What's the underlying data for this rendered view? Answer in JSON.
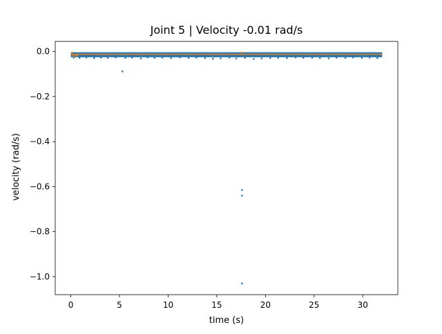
{
  "chart_data": {
    "type": "scatter",
    "title": "Joint 5 | Velocity -0.01 rad/s",
    "xlabel": "time (s)",
    "ylabel": "velocity (rad/s)",
    "xlim": [
      -1.6,
      33.6
    ],
    "ylim": [
      -1.08,
      0.045
    ],
    "x_ticks": [
      0,
      5,
      10,
      15,
      20,
      25,
      30
    ],
    "x_tick_labels": [
      "0",
      "5",
      "10",
      "15",
      "20",
      "25",
      "30"
    ],
    "y_ticks": [
      0.0,
      -0.2,
      -0.4,
      -0.6,
      -0.8,
      -1.0
    ],
    "y_tick_labels": [
      "0.0",
      "−0.2",
      "−0.4",
      "−0.6",
      "−0.8",
      "−1.0"
    ],
    "grid": false,
    "series": [
      {
        "color": "#1f77b4",
        "band": {
          "x_range": [
            0.0,
            32.0
          ],
          "y_range": [
            -0.025,
            -0.003
          ]
        },
        "scatter_points": [
          [
            0.3,
            -0.027
          ],
          [
            0.9,
            -0.028
          ],
          [
            1.6,
            -0.026
          ],
          [
            2.4,
            -0.029
          ],
          [
            3.1,
            -0.027
          ],
          [
            3.8,
            -0.028
          ],
          [
            4.6,
            -0.026
          ],
          [
            5.6,
            -0.028
          ],
          [
            6.3,
            -0.027
          ],
          [
            7.2,
            -0.031
          ],
          [
            7.9,
            -0.026
          ],
          [
            8.6,
            -0.028
          ],
          [
            9.4,
            -0.027
          ],
          [
            10.3,
            -0.029
          ],
          [
            11.2,
            -0.026
          ],
          [
            12.1,
            -0.028
          ],
          [
            12.9,
            -0.027
          ],
          [
            13.8,
            -0.029
          ],
          [
            14.6,
            -0.032
          ],
          [
            15.4,
            -0.03
          ],
          [
            16.3,
            -0.027
          ],
          [
            17.0,
            -0.031
          ],
          [
            17.9,
            -0.028
          ],
          [
            18.8,
            -0.033
          ],
          [
            19.6,
            -0.03
          ],
          [
            20.5,
            -0.028
          ],
          [
            21.3,
            -0.027
          ],
          [
            22.2,
            -0.029
          ],
          [
            23.1,
            -0.026
          ],
          [
            23.9,
            -0.028
          ],
          [
            24.8,
            -0.027
          ],
          [
            25.6,
            -0.029
          ],
          [
            26.5,
            -0.03
          ],
          [
            27.3,
            -0.027
          ],
          [
            28.2,
            -0.028
          ],
          [
            29.0,
            -0.026
          ],
          [
            29.9,
            -0.028
          ],
          [
            30.7,
            -0.027
          ],
          [
            31.5,
            -0.029
          ]
        ],
        "outliers": [
          [
            5.3,
            -0.088
          ],
          [
            17.6,
            -0.615
          ],
          [
            17.6,
            -0.64
          ],
          [
            17.6,
            -1.03
          ]
        ]
      },
      {
        "color": "#ff7f0e",
        "band": {
          "x_range": [
            0.0,
            32.0
          ],
          "y_range": [
            -0.013,
            -0.01
          ]
        },
        "scatter_points": [
          [
            0.1,
            -0.005
          ],
          [
            0.3,
            -0.02
          ],
          [
            0.6,
            -0.018
          ],
          [
            17.6,
            -0.004
          ]
        ],
        "outliers": []
      }
    ]
  }
}
